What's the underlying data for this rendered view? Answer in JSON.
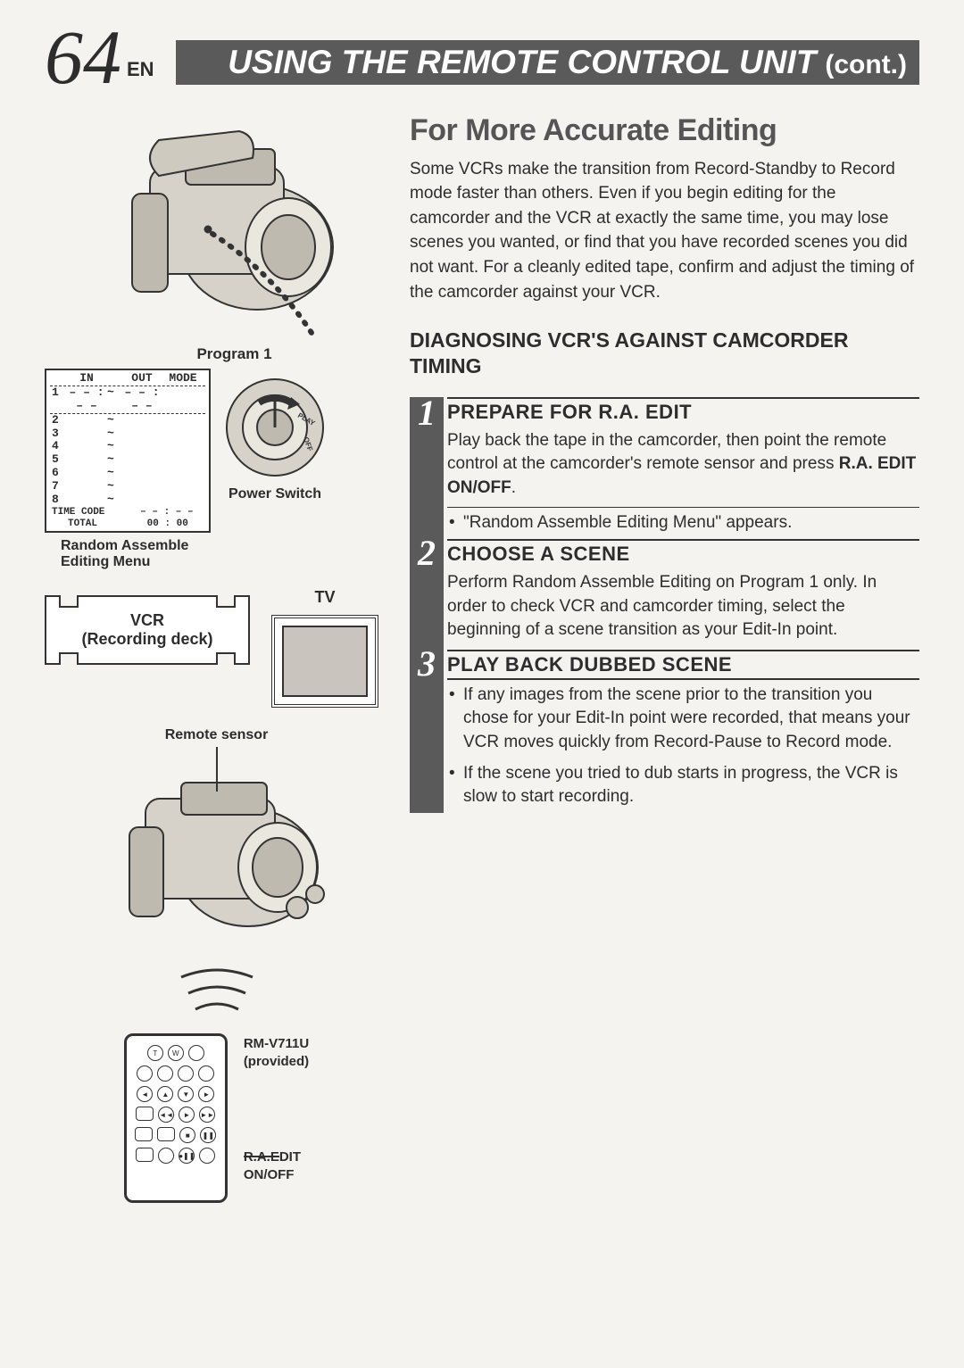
{
  "page_number": "64",
  "lang_code": "EN",
  "header_title": "USING THE REMOTE CONTROL UNIT",
  "header_cont": "(cont.)",
  "colors": {
    "header_bg": "#5a5a5a",
    "header_text": "#ffffff",
    "body_text": "#2d2d2d",
    "section_title": "#555555",
    "page_bg": "#f5f3ef"
  },
  "left": {
    "program_label": "Program 1",
    "menu": {
      "headers": [
        "IN",
        "OUT",
        "MODE"
      ],
      "row1": [
        "1",
        "– – : – –",
        "~",
        "– – : – –"
      ],
      "rows": [
        "2",
        "3",
        "4",
        "5",
        "6",
        "7",
        "8"
      ],
      "tilde": "~",
      "time_code_label": "TIME CODE",
      "time_code_val": "– – : – –",
      "total_label": "TOTAL",
      "total_val": "00 : 00"
    },
    "power_switch": "Power Switch",
    "ram_label1": "Random Assemble",
    "ram_label2": "Editing Menu",
    "vcr_line1": "VCR",
    "vcr_line2": "(Recording deck)",
    "tv_label": "TV",
    "remote_sensor": "Remote sensor",
    "remote_model": "RM-V711U",
    "remote_provided": "(provided)",
    "ra_edit1": "R.A.EDIT",
    "ra_edit2": "ON/OFF"
  },
  "right": {
    "title": "For More Accurate Editing",
    "intro": "Some VCRs make the transition from Record-Standby to Record mode faster than others. Even if you begin editing for the camcorder and the VCR at exactly the same time, you may lose scenes you wanted, or find that you have recorded scenes you did not want. For a cleanly edited tape, confirm and adjust the timing of the camcorder against your VCR.",
    "subheading": "DIAGNOSING VCR'S AGAINST CAMCORDER TIMING",
    "steps": [
      {
        "num": "1",
        "title": "PREPARE FOR R.A. EDIT",
        "body_pre": "Play back the tape in the camcorder, then point the remote control at the camcorder's remote sensor and press ",
        "body_strong": "R.A. EDIT ON/OFF",
        "body_post": ".",
        "bullets": [
          "\"Random Assemble Editing Menu\" appears."
        ]
      },
      {
        "num": "2",
        "title": "CHOOSE A SCENE",
        "body": "Perform Random Assemble Editing on Program 1 only. In order to check VCR and camcorder timing, select the beginning of a scene transition as your Edit-In point.",
        "bullets": []
      },
      {
        "num": "3",
        "title": "PLAY BACK DUBBED SCENE",
        "body": "",
        "bullets": [
          "If any images from the scene prior to the transition you chose for your Edit-In point were recorded, that means your VCR moves quickly from Record-Pause to Record mode.",
          "If the scene you tried to dub starts in progress, the VCR is slow to start recording."
        ]
      }
    ]
  }
}
